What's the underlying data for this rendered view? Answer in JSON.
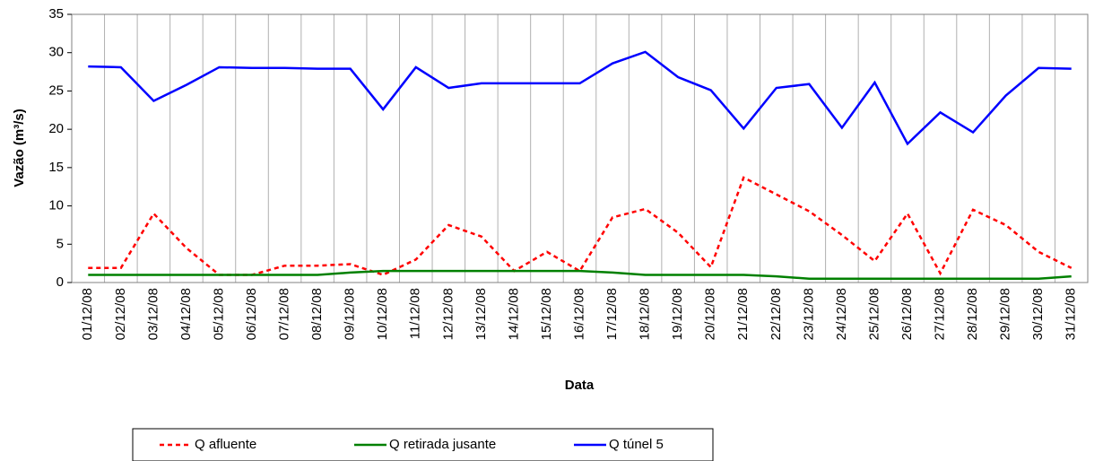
{
  "chart_data": {
    "type": "line",
    "y_label": "Vazão (m³/s)",
    "x_label": "Data",
    "categories": [
      "01/12/08",
      "02/12/08",
      "03/12/08",
      "04/12/08",
      "05/12/08",
      "06/12/08",
      "07/12/08",
      "08/12/08",
      "09/12/08",
      "10/12/08",
      "11/12/08",
      "12/12/08",
      "13/12/08",
      "14/12/08",
      "15/12/08",
      "16/12/08",
      "17/12/08",
      "18/12/08",
      "19/12/08",
      "20/12/08",
      "21/12/08",
      "22/12/08",
      "23/12/08",
      "24/12/08",
      "25/12/08",
      "26/12/08",
      "27/12/08",
      "28/12/08",
      "29/12/08",
      "30/12/08",
      "31/12/08"
    ],
    "series": [
      {
        "name": "Q afluente",
        "color": "#ff0000",
        "dashed": true,
        "values": [
          1.9,
          1.9,
          9.0,
          4.5,
          1.0,
          1.0,
          2.2,
          2.2,
          2.4,
          1.0,
          3.0,
          7.5,
          6.0,
          1.5,
          4.0,
          1.5,
          8.5,
          9.6,
          6.5,
          2.0,
          13.7,
          11.5,
          9.3,
          6.2,
          2.8,
          9.0,
          1.2,
          9.5,
          7.5,
          4.0,
          1.9
        ]
      },
      {
        "name": "Q retirada jusante",
        "color": "#008000",
        "dashed": false,
        "values": [
          1.0,
          1.0,
          1.0,
          1.0,
          1.0,
          1.0,
          1.0,
          1.0,
          1.3,
          1.5,
          1.5,
          1.5,
          1.5,
          1.5,
          1.5,
          1.5,
          1.3,
          1.0,
          1.0,
          1.0,
          1.0,
          0.8,
          0.5,
          0.5,
          0.5,
          0.5,
          0.5,
          0.5,
          0.5,
          0.5,
          0.8
        ]
      },
      {
        "name": "Q túnel 5",
        "color": "#0000ff",
        "dashed": false,
        "values": [
          28.2,
          28.1,
          23.7,
          25.8,
          28.1,
          28.0,
          28.0,
          27.9,
          27.9,
          22.6,
          28.1,
          25.4,
          26.0,
          26.0,
          26.0,
          26.0,
          28.6,
          30.1,
          26.8,
          25.1,
          20.1,
          25.4,
          25.9,
          20.2,
          26.1,
          18.1,
          22.2,
          19.6,
          24.4,
          28.0,
          27.9
        ]
      }
    ],
    "ylim": [
      0,
      35
    ],
    "yticks": [
      0,
      5,
      10,
      15,
      20,
      25,
      30,
      35
    ],
    "grid": true
  }
}
